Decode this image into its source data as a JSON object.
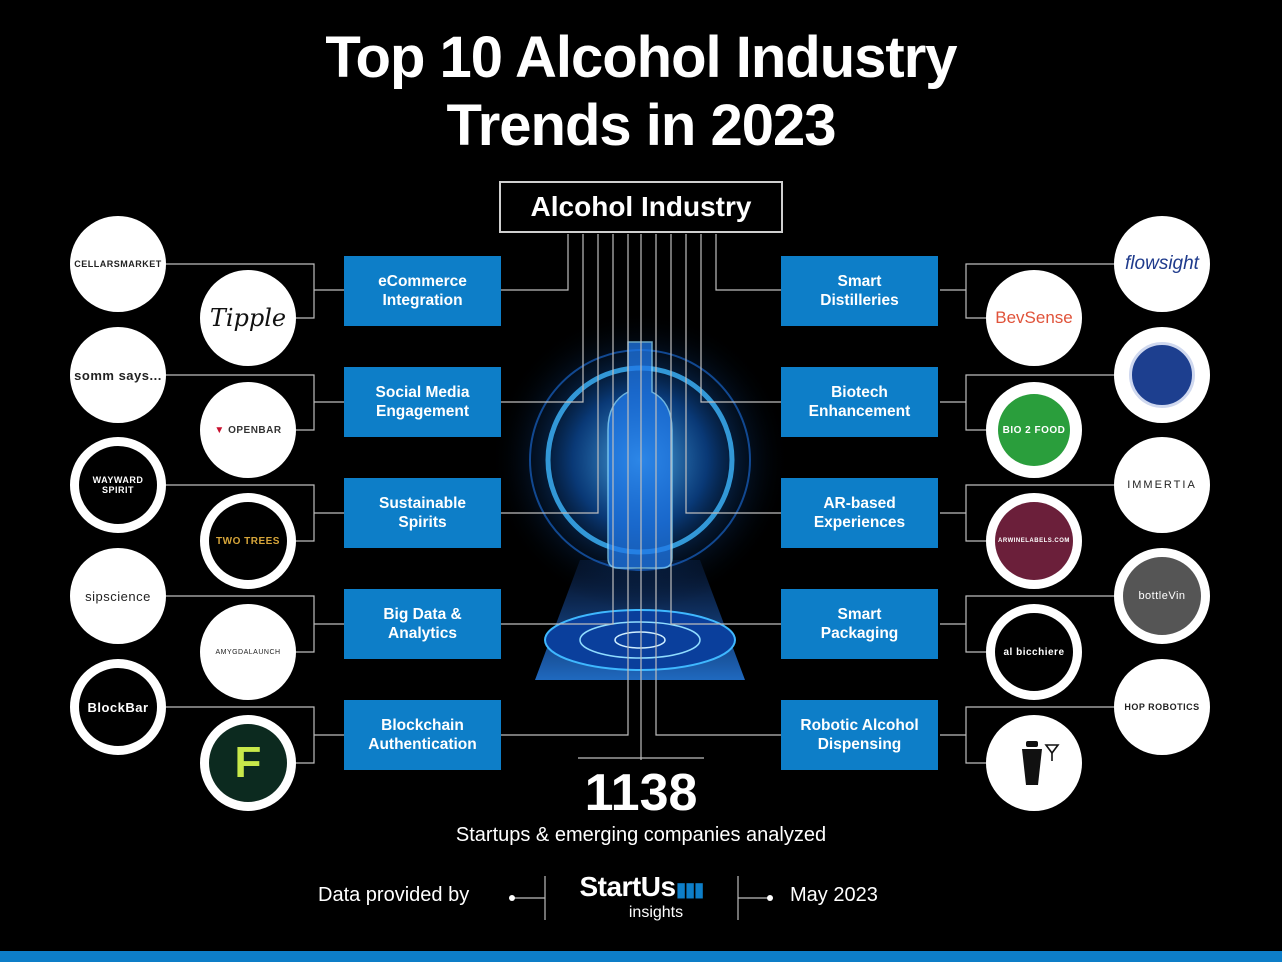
{
  "title": {
    "line1": "Top 10  Alcohol Industry",
    "line2": "Trends in 2023"
  },
  "root": "Alcohol Industry",
  "trends_left": [
    {
      "line1": "eCommerce",
      "line2": "Integration"
    },
    {
      "line1": "Social Media",
      "line2": "Engagement"
    },
    {
      "line1": "Sustainable",
      "line2": "Spirits"
    },
    {
      "line1": "Big Data &",
      "line2": "Analytics"
    },
    {
      "line1": "Blockchain",
      "line2": "Authentication"
    }
  ],
  "trends_right": [
    {
      "line1": "Smart",
      "line2": "Distilleries"
    },
    {
      "line1": "Biotech",
      "line2": "Enhancement"
    },
    {
      "line1": "AR-based",
      "line2": "Experiences"
    },
    {
      "line1": "Smart",
      "line2": "Packaging"
    },
    {
      "line1": "Robotic Alcohol",
      "line2": "Dispensing"
    }
  ],
  "logos_left": [
    {
      "outer": "CELLARSMARKET",
      "inner": "Tipple"
    },
    {
      "outer": "somm says...",
      "inner": "OPENBAR"
    },
    {
      "outer": "WAYWARD SPIRIT",
      "inner": "TWO TREES"
    },
    {
      "outer": "sipscience",
      "inner": "AMYGDALAUNCH"
    },
    {
      "outer": "BlockBar",
      "inner": "F"
    }
  ],
  "logos_right": [
    {
      "outer": "flowsight",
      "inner": "BevSense"
    },
    {
      "outer": "",
      "inner": "BIO 2 FOOD"
    },
    {
      "outer": "IMMERTIA",
      "inner": "ARWINELABELS.COM"
    },
    {
      "outer": "bottleVin",
      "inner": "al bicchiere"
    },
    {
      "outer": "HOP ROBOTICS",
      "inner": ""
    }
  ],
  "stats": {
    "count": "1138",
    "label": "Startups & emerging companies analyzed"
  },
  "footer": {
    "provided_by": "Data provided by",
    "brand": "StartUs",
    "brand_sub": "insights",
    "date": "May 2023"
  },
  "colors": {
    "background": "#000000",
    "trend_box": "#0d7ec8",
    "accent_bar": "#0d7ec8",
    "line": "#bdbdbd"
  }
}
